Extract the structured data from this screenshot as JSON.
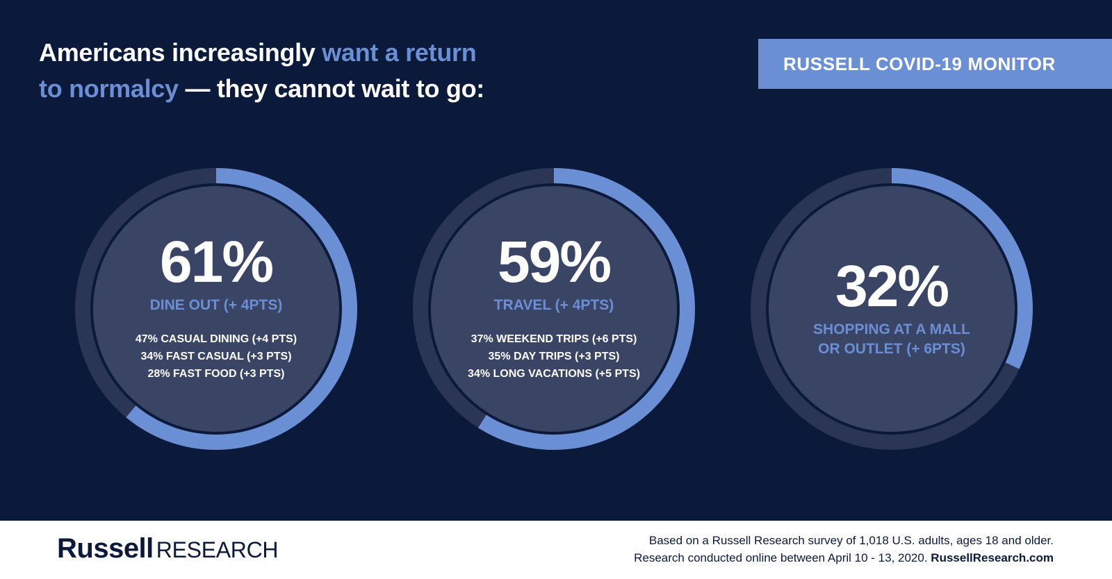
{
  "header": {
    "title_part1": "Americans increasingly ",
    "title_highlight1": "want a return",
    "title_highlight2": "to normalcy",
    "title_part2": " — they cannot wait to go:",
    "badge": "RUSSELL COVID-19 MONITOR"
  },
  "colors": {
    "background": "#0b1a3a",
    "accent": "#6a8fd4",
    "track": "#2b3556",
    "inner": "#3a4566"
  },
  "chart_data": {
    "type": "donut",
    "series": [
      {
        "value": 61,
        "display": "61%",
        "label": "DINE OUT (+ 4PTS)",
        "details": [
          "47% CASUAL DINING (+4 PTS)",
          "34% FAST CASUAL (+3 PTS)",
          "28% FAST FOOD (+3 PTS)"
        ]
      },
      {
        "value": 59,
        "display": "59%",
        "label": "TRAVEL (+ 4PTS)",
        "details": [
          "37% WEEKEND TRIPS (+6 PTS)",
          "35% DAY TRIPS (+3 PTS)",
          "34% LONG VACATIONS (+5 PTS)"
        ]
      },
      {
        "value": 32,
        "display": "32%",
        "label_line1": "SHOPPING AT A MALL",
        "label_line2": "OR OUTLET (+ 6PTS)",
        "details": []
      }
    ]
  },
  "footer": {
    "logo_bold": "Russell",
    "logo_light": "RESEARCH",
    "note_line1": "Based on a Russell Research survey of 1,018 U.S. adults, ages 18 and older.",
    "note_line2": "Research conducted online between  April 10 - 13, 2020. ",
    "note_link": "RussellResearch.com"
  }
}
